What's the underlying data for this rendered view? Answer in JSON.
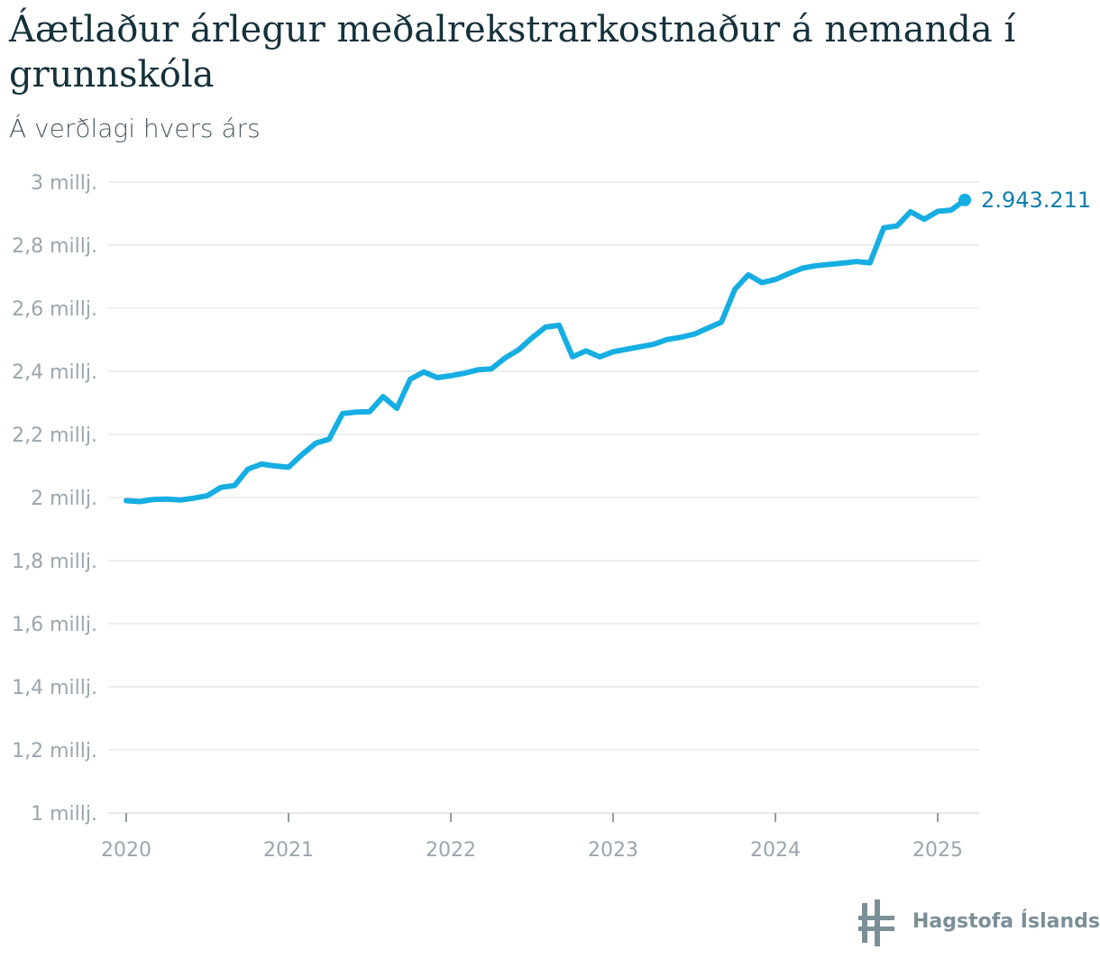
{
  "title": "Áætlaður árlegur meðalrekstrarkostnaður á nemanda í grunnskóla",
  "subtitle": "Á verðlagi hvers árs",
  "logo_text": "Hagstofa Íslands",
  "colors": {
    "line": "#16aee2",
    "end_label": "#0d7fb0",
    "grid": "#dfe3e5",
    "axis_text": "#9aa6ad"
  },
  "chart_data": {
    "type": "line",
    "ylim": [
      1000000,
      3000000
    ],
    "xlim": [
      2020.0,
      2025.25
    ],
    "y_ticks": [
      {
        "value": 3000000,
        "label": "3 millj."
      },
      {
        "value": 2800000,
        "label": "2,8 millj."
      },
      {
        "value": 2600000,
        "label": "2,6 millj."
      },
      {
        "value": 2400000,
        "label": "2,4 millj."
      },
      {
        "value": 2200000,
        "label": "2,2 millj."
      },
      {
        "value": 2000000,
        "label": "2 millj."
      },
      {
        "value": 1800000,
        "label": "1,8 millj."
      },
      {
        "value": 1600000,
        "label": "1,6 millj."
      },
      {
        "value": 1400000,
        "label": "1,4 millj."
      },
      {
        "value": 1200000,
        "label": "1,2 millj."
      },
      {
        "value": 1000000,
        "label": "1 millj."
      }
    ],
    "x_ticks": [
      {
        "value": 2020,
        "label": "2020"
      },
      {
        "value": 2021,
        "label": "2021"
      },
      {
        "value": 2022,
        "label": "2022"
      },
      {
        "value": 2023,
        "label": "2023"
      },
      {
        "value": 2024,
        "label": "2024"
      },
      {
        "value": 2025,
        "label": "2025"
      }
    ],
    "grid": true,
    "end_label": "2.943.211",
    "series": [
      {
        "x": [
          2020.0,
          2020.083,
          2020.167,
          2020.25,
          2020.333,
          2020.417,
          2020.5,
          2020.583,
          2020.667,
          2020.75,
          2020.833,
          2020.917,
          2021.0,
          2021.083,
          2021.167,
          2021.25,
          2021.333,
          2021.417,
          2021.5,
          2021.583,
          2021.667,
          2021.75,
          2021.833,
          2021.917,
          2022.0,
          2022.083,
          2022.167,
          2022.25,
          2022.333,
          2022.417,
          2022.5,
          2022.583,
          2022.667,
          2022.75,
          2022.833,
          2022.917,
          2023.0,
          2023.083,
          2023.167,
          2023.25,
          2023.333,
          2023.417,
          2023.5,
          2023.583,
          2023.667,
          2023.75,
          2023.833,
          2023.917,
          2024.0,
          2024.083,
          2024.167,
          2024.25,
          2024.333,
          2024.417,
          2024.5,
          2024.583,
          2024.667,
          2024.75,
          2024.833,
          2024.917,
          2025.0,
          2025.083,
          2025.167
        ],
        "values": [
          1990000,
          1987000,
          1994000,
          1995000,
          1992000,
          1998000,
          2006000,
          2032000,
          2038000,
          2090000,
          2106000,
          2100000,
          2096000,
          2136000,
          2172000,
          2185000,
          2266000,
          2271000,
          2272000,
          2320000,
          2283000,
          2375000,
          2398000,
          2380000,
          2386000,
          2394000,
          2405000,
          2408000,
          2442000,
          2468000,
          2506000,
          2540000,
          2546000,
          2446000,
          2465000,
          2446000,
          2462000,
          2470000,
          2478000,
          2486000,
          2501000,
          2508000,
          2518000,
          2537000,
          2556000,
          2660000,
          2706000,
          2681000,
          2691000,
          2710000,
          2727000,
          2735000,
          2739000,
          2743000,
          2748000,
          2744000,
          2855000,
          2861000,
          2906000,
          2882000,
          2907000,
          2911000,
          2943211
        ]
      }
    ]
  }
}
